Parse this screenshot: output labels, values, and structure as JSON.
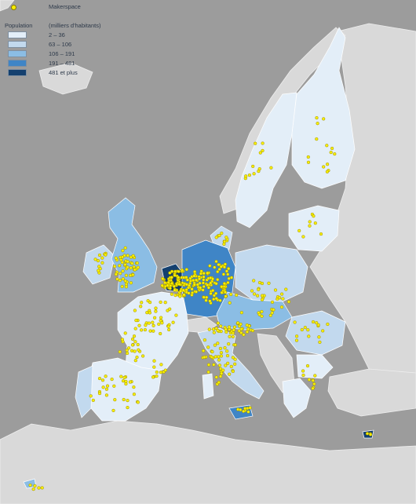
{
  "legend": {
    "marker_label": "Makerspace",
    "population_label": "Population",
    "unit_label": "(milliers d'habitants)",
    "classes": [
      {
        "label": "2 – 36",
        "color": "#e3eef8"
      },
      {
        "label": "63 – 106",
        "color": "#c2d9ee"
      },
      {
        "label": "106 – 191",
        "color": "#8bbde4"
      },
      {
        "label": "191 – 481",
        "color": "#3f85c6"
      },
      {
        "label": "481 et plus",
        "color": "#14406f"
      }
    ]
  },
  "colors": {
    "background": "#9c9c9c",
    "non_eu_land": "#d9d9d9",
    "borders": "#ffffff",
    "makerspace_dot": "#f7ee00",
    "makerspace_dot_outline": "#8a7a00"
  },
  "icons": {
    "makerspace_marker": "yellow-dot-icon"
  }
}
